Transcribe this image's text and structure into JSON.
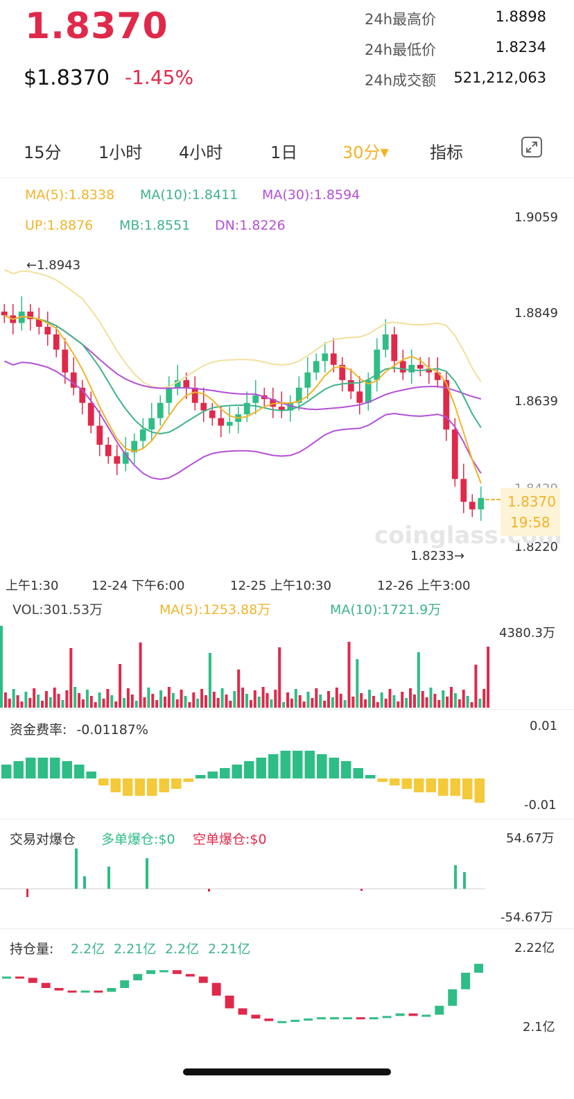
{
  "header": {
    "price": "1.8370",
    "usd_price": "$1.8370",
    "change": "-1.45%",
    "stats": [
      {
        "label": "24h最高价",
        "value": "1.8898"
      },
      {
        "label": "24h最低价",
        "value": "1.8234"
      },
      {
        "label": "24h成交额",
        "value": "521,212,063"
      }
    ]
  },
  "tabs": [
    {
      "label": "15分",
      "active": false
    },
    {
      "label": "1小时",
      "active": false
    },
    {
      "label": "4小时",
      "active": false
    },
    {
      "label": "1日",
      "active": false
    },
    {
      "label": "30分",
      "active": true
    },
    {
      "label": "指标",
      "active": false
    }
  ],
  "icons": {
    "fullscreen": "expand-icon",
    "dropdown": "caret-down-icon"
  },
  "colors": {
    "up": "#2ebd85",
    "down": "#e0294a",
    "ma5": "#f0b429",
    "ma10": "#3db38a",
    "ma30": "#b44fd6",
    "boll_up": "#f3df9a",
    "accent": "#f0b429"
  },
  "main_chart": {
    "ma_legend": [
      {
        "text": "MA(5):1.8338",
        "color": "#f0b429"
      },
      {
        "text": "MA(10):1.8411",
        "color": "#3db38a"
      },
      {
        "text": "MA(30):1.8594",
        "color": "#b44fd6"
      }
    ],
    "boll_legend": [
      {
        "text": "UP:1.8876",
        "color": "#f0b429"
      },
      {
        "text": "MB:1.8551",
        "color": "#3db38a"
      },
      {
        "text": "DN:1.8226",
        "color": "#b44fd6"
      }
    ],
    "y_ticks": [
      "1.9059",
      "1.8849",
      "1.8639",
      "1.8429",
      "1.8220"
    ],
    "x_ticks": [
      "上午1:30",
      "12-24 下午6:00",
      "12-25 上午10:30",
      "12-26 上午3:00"
    ],
    "high_marker": "←1.8943",
    "low_marker": "1.8233→",
    "current_price": "1.8370",
    "countdown": "19:58",
    "watermark": "coinglass.com"
  },
  "volume_panel": {
    "vol": "VOL:301.53万",
    "ma5": "MA(5):1253.88万",
    "ma10": "MA(10):1721.9万",
    "max": "4380.3万"
  },
  "funding_panel": {
    "label": "资金费率:",
    "value": "-0.01187%",
    "top": "0.01",
    "bottom": "-0.01"
  },
  "liq_panel": {
    "label": "交易对爆仓",
    "long": "多单爆仓:$0",
    "short": "空单爆仓:$0",
    "top": "54.67万",
    "bottom": "-54.67万"
  },
  "oi_panel": {
    "label": "持仓量:",
    "values": [
      "2.2亿",
      "2.21亿",
      "2.2亿",
      "2.21亿"
    ],
    "top": "2.22亿",
    "bottom": "2.1亿"
  },
  "chart_data": {
    "type": "candlestick",
    "price_axis": {
      "min": 1.822,
      "max": 1.9059
    },
    "close_path": [
      1.885,
      1.883,
      1.886,
      1.884,
      1.882,
      1.88,
      1.876,
      1.87,
      1.866,
      1.862,
      1.856,
      1.851,
      1.848,
      1.846,
      1.849,
      1.852,
      1.855,
      1.858,
      1.862,
      1.866,
      1.868,
      1.866,
      1.862,
      1.86,
      1.858,
      1.856,
      1.857,
      1.859,
      1.862,
      1.864,
      1.863,
      1.861,
      1.86,
      1.862,
      1.866,
      1.87,
      1.873,
      1.875,
      1.872,
      1.868,
      1.865,
      1.862,
      1.868,
      1.876,
      1.88,
      1.873,
      1.87,
      1.872,
      1.871,
      1.87,
      1.868,
      1.855,
      1.842,
      1.836,
      1.834,
      1.837
    ],
    "funding_rates": [
      0.004,
      0.005,
      0.006,
      0.006,
      0.006,
      0.005,
      0.004,
      0.002,
      -0.002,
      -0.004,
      -0.005,
      -0.005,
      -0.005,
      -0.004,
      -0.003,
      -0.001,
      0.001,
      0.002,
      0.003,
      0.004,
      0.005,
      0.006,
      0.007,
      0.008,
      0.008,
      0.008,
      0.007,
      0.006,
      0.005,
      0.003,
      0.001,
      -0.001,
      -0.002,
      -0.003,
      -0.004,
      -0.004,
      -0.005,
      -0.005,
      -0.006,
      -0.007
    ],
    "open_interest": [
      2.205,
      2.204,
      2.2,
      2.196,
      2.194,
      2.193,
      2.194,
      2.193,
      2.196,
      2.202,
      2.207,
      2.21,
      2.21,
      2.207,
      2.205,
      2.2,
      2.19,
      2.18,
      2.175,
      2.172,
      2.17,
      2.17,
      2.171,
      2.172,
      2.173,
      2.173,
      2.173,
      2.172,
      2.173,
      2.174,
      2.176,
      2.174,
      2.175,
      2.182,
      2.195,
      2.208,
      2.215
    ]
  }
}
